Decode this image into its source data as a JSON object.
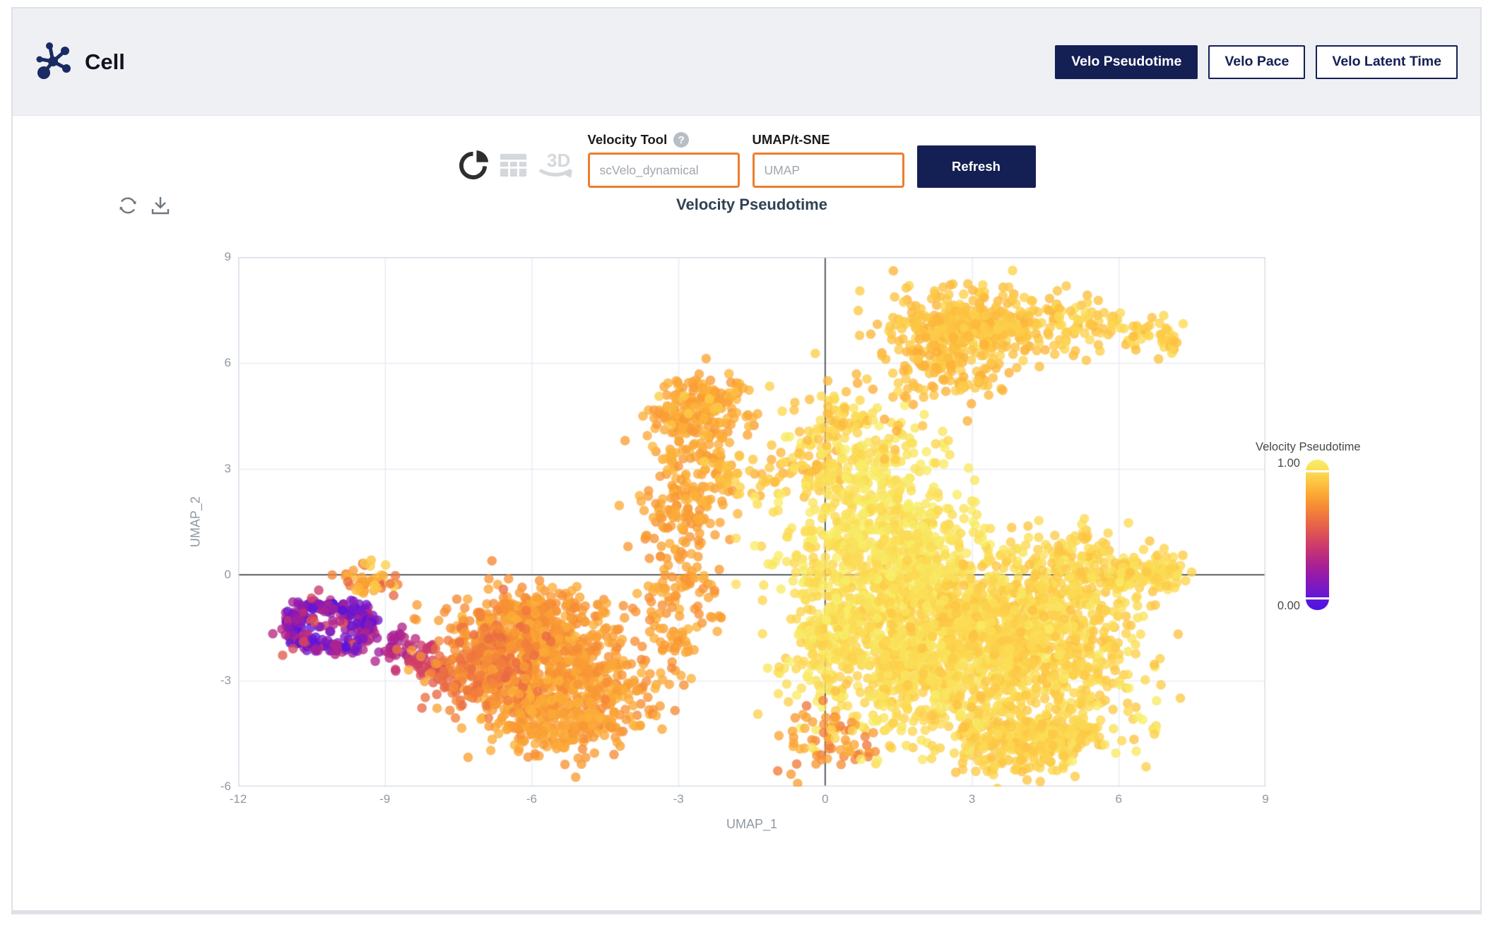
{
  "theme": {
    "accent_orange": "#ec7d2e",
    "brand_navy": "#141f54",
    "header_bg": "#eef0f4",
    "title_color": "#2f4154"
  },
  "header": {
    "app_title": "Cell",
    "nav_buttons": [
      {
        "label": "Velo Pseudotime",
        "active": true
      },
      {
        "label": "Velo Pace",
        "active": false
      },
      {
        "label": "Velo Latent Time",
        "active": false
      }
    ]
  },
  "toolbar": {
    "velocity_tool_label": "Velocity Tool",
    "help_glyph": "?",
    "velocity_tool_placeholder": "scVelo_dynamical",
    "umap_label": "UMAP/t-SNE",
    "umap_placeholder": "UMAP",
    "refresh_label": "Refresh",
    "icons": [
      "pie-chart",
      "data-table",
      "3d-rotate"
    ]
  },
  "chart_actions": [
    "reload-chart",
    "download-chart"
  ],
  "chart_data": {
    "type": "scatter",
    "title": "Velocity Pseudotime",
    "xlabel": "UMAP_1",
    "ylabel": "UMAP_2",
    "xlim": [
      -12,
      9
    ],
    "ylim": [
      -6,
      9
    ],
    "xticks": [
      -12,
      -9,
      -6,
      -3,
      0,
      3,
      6,
      9
    ],
    "yticks": [
      9,
      6,
      3,
      0,
      -3,
      -6
    ],
    "grid": true,
    "zero_lines": true,
    "point_radius_px": 6.8,
    "point_opacity": 0.78,
    "legend": {
      "title": "Velocity Pseudotime",
      "max_label": "1.00",
      "min_label": "0.00",
      "position": "right"
    },
    "colormap": {
      "name": "plasma-like",
      "stops": [
        [
          0.0,
          "#4d12e4"
        ],
        [
          0.08,
          "#6316d8"
        ],
        [
          0.16,
          "#7e18c1"
        ],
        [
          0.25,
          "#9a1ca6"
        ],
        [
          0.33,
          "#b42688"
        ],
        [
          0.42,
          "#cb396e"
        ],
        [
          0.5,
          "#dc4f58"
        ],
        [
          0.58,
          "#e96846"
        ],
        [
          0.66,
          "#f38139"
        ],
        [
          0.74,
          "#fa9d33"
        ],
        [
          0.82,
          "#fdba3c"
        ],
        [
          0.9,
          "#fdd54e"
        ],
        [
          1.0,
          "#f7f06a"
        ]
      ]
    },
    "clusters": [
      {
        "name": "origin-ring",
        "shape": "ring",
        "cx": -10.15,
        "cy": -1.45,
        "rx": 0.82,
        "ry": 0.6,
        "w": 0.16,
        "n": 240,
        "t": [
          0.0,
          0.4
        ]
      },
      {
        "name": "origin-core",
        "shape": "gauss",
        "cx": -10.2,
        "cy": -1.5,
        "sx": 0.45,
        "sy": 0.38,
        "n": 40,
        "t": [
          0.05,
          0.55
        ]
      },
      {
        "name": "origin-top-nub",
        "shape": "gauss",
        "cx": -9.35,
        "cy": -0.1,
        "sx": 0.28,
        "sy": 0.25,
        "n": 50,
        "t": [
          0.55,
          0.9
        ]
      },
      {
        "name": "transition-tail",
        "shape": "band",
        "x1": -8.95,
        "y1": -1.8,
        "x2": -7.55,
        "y2": -3.0,
        "w": 0.25,
        "n": 90,
        "t": [
          0.28,
          0.6
        ],
        "grad": true
      },
      {
        "name": "left-mass-upper",
        "shape": "gauss",
        "cx": -6.0,
        "cy": -1.5,
        "sx": 0.8,
        "sy": 0.7,
        "n": 420,
        "t": [
          0.68,
          0.8
        ]
      },
      {
        "name": "left-mass-lower",
        "shape": "gauss",
        "cx": -5.3,
        "cy": -3.2,
        "sx": 1.0,
        "sy": 0.75,
        "n": 520,
        "t": [
          0.68,
          0.8
        ]
      },
      {
        "name": "left-mass-west",
        "shape": "gauss",
        "cx": -6.9,
        "cy": -2.5,
        "sx": 0.5,
        "sy": 0.75,
        "n": 220,
        "t": [
          0.58,
          0.74
        ]
      },
      {
        "name": "left-mass-deep",
        "shape": "gauss",
        "cx": -5.6,
        "cy": -4.3,
        "sx": 0.7,
        "sy": 0.4,
        "n": 130,
        "t": [
          0.7,
          0.8
        ]
      },
      {
        "name": "column-lower",
        "shape": "band",
        "x1": -3.1,
        "y1": -2.2,
        "x2": -2.8,
        "y2": 1.6,
        "w": 0.5,
        "n": 140,
        "t": [
          0.7,
          0.8
        ]
      },
      {
        "name": "column-upper",
        "shape": "band",
        "x1": -2.9,
        "y1": 1.6,
        "x2": -2.6,
        "y2": 4.6,
        "w": 0.45,
        "n": 170,
        "t": [
          0.72,
          0.82
        ]
      },
      {
        "name": "column-top-blob",
        "shape": "gauss",
        "cx": -2.55,
        "cy": 4.8,
        "sx": 0.5,
        "sy": 0.45,
        "n": 150,
        "t": [
          0.72,
          0.82
        ]
      },
      {
        "name": "mid-strand",
        "shape": "band",
        "x1": -2.2,
        "y1": 2.75,
        "x2": 0.3,
        "y2": 3.0,
        "w": 0.3,
        "n": 80,
        "t": [
          0.78,
          0.9
        ]
      },
      {
        "name": "mid-upper-blob",
        "shape": "gauss",
        "cx": 0.9,
        "cy": 3.0,
        "sx": 0.8,
        "sy": 0.75,
        "n": 200,
        "t": [
          0.9,
          1.0
        ]
      },
      {
        "name": "mid-upper-tip",
        "shape": "gauss",
        "cx": 0.3,
        "cy": 4.5,
        "sx": 0.3,
        "sy": 0.4,
        "n": 40,
        "t": [
          0.82,
          0.95
        ]
      },
      {
        "name": "top-right-main",
        "shape": "gauss",
        "cx": 3.1,
        "cy": 7.0,
        "sx": 0.85,
        "sy": 0.55,
        "n": 400,
        "t": [
          0.8,
          0.9
        ]
      },
      {
        "name": "top-right-arm",
        "shape": "band",
        "x1": 4.6,
        "y1": 7.3,
        "x2": 7.2,
        "y2": 6.6,
        "w": 0.3,
        "n": 100,
        "t": [
          0.82,
          0.93
        ]
      },
      {
        "name": "top-right-south",
        "shape": "gauss",
        "cx": 2.5,
        "cy": 5.8,
        "sx": 0.6,
        "sy": 0.5,
        "n": 110,
        "t": [
          0.78,
          0.88
        ]
      },
      {
        "name": "right-mass-a",
        "shape": "gauss",
        "cx": 1.6,
        "cy": -0.6,
        "sx": 1.1,
        "sy": 0.95,
        "n": 560,
        "t": [
          0.88,
          1.0
        ]
      },
      {
        "name": "right-mass-b",
        "shape": "gauss",
        "cx": 3.4,
        "cy": -1.3,
        "sx": 1.2,
        "sy": 1.0,
        "n": 540,
        "t": [
          0.85,
          0.96
        ]
      },
      {
        "name": "right-mass-c",
        "shape": "gauss",
        "cx": 2.2,
        "cy": -2.8,
        "sx": 1.15,
        "sy": 0.9,
        "n": 480,
        "t": [
          0.86,
          0.97
        ]
      },
      {
        "name": "right-mass-d",
        "shape": "gauss",
        "cx": 4.7,
        "cy": -2.3,
        "sx": 1.0,
        "sy": 1.0,
        "n": 330,
        "t": [
          0.84,
          0.94
        ]
      },
      {
        "name": "right-mass-north",
        "shape": "gauss",
        "cx": 1.2,
        "cy": 1.2,
        "sx": 0.95,
        "sy": 0.7,
        "n": 300,
        "t": [
          0.9,
          1.0
        ]
      },
      {
        "name": "right-mass-east",
        "shape": "gauss",
        "cx": 5.3,
        "cy": 0.1,
        "sx": 0.8,
        "sy": 0.55,
        "n": 160,
        "t": [
          0.85,
          0.95
        ]
      },
      {
        "name": "right-edge-west",
        "shape": "gauss",
        "cx": 0.15,
        "cy": -1.6,
        "sx": 0.45,
        "sy": 1.1,
        "n": 170,
        "t": [
          0.88,
          1.0
        ]
      },
      {
        "name": "u-bottom-left",
        "shape": "gauss",
        "cx": 3.6,
        "cy": -4.6,
        "sx": 0.55,
        "sy": 0.4,
        "n": 150,
        "t": [
          0.84,
          0.94
        ]
      },
      {
        "name": "u-bottom-right",
        "shape": "band",
        "x1": 4.3,
        "y1": -4.9,
        "x2": 5.5,
        "y2": -4.3,
        "w": 0.25,
        "n": 90,
        "t": [
          0.84,
          0.94
        ]
      },
      {
        "name": "right-arm-axis",
        "shape": "band",
        "x1": 5.9,
        "y1": 0.1,
        "x2": 7.25,
        "y2": -0.05,
        "w": 0.22,
        "n": 80,
        "t": [
          0.86,
          0.96
        ]
      },
      {
        "name": "bottom-center-scatter",
        "shape": "gauss",
        "cx": 0.0,
        "cy": -4.7,
        "sx": 0.55,
        "sy": 0.45,
        "n": 60,
        "t": [
          0.62,
          0.8
        ]
      },
      {
        "name": "bottom-low-tendril",
        "shape": "gauss",
        "cx": 3.9,
        "cy": -5.3,
        "sx": 0.6,
        "sy": 0.25,
        "n": 60,
        "t": [
          0.84,
          0.92
        ]
      },
      {
        "name": "right-sparse",
        "shape": "uniform",
        "x1": -0.3,
        "y1": -5.4,
        "x2": 6.8,
        "y2": 1.0,
        "n": 170,
        "t": [
          0.84,
          1.0
        ]
      },
      {
        "name": "upper-sparse",
        "shape": "uniform",
        "x1": -3.5,
        "y1": 3.0,
        "x2": 2.0,
        "y2": 5.5,
        "n": 40,
        "t": [
          0.78,
          0.92
        ]
      }
    ]
  }
}
